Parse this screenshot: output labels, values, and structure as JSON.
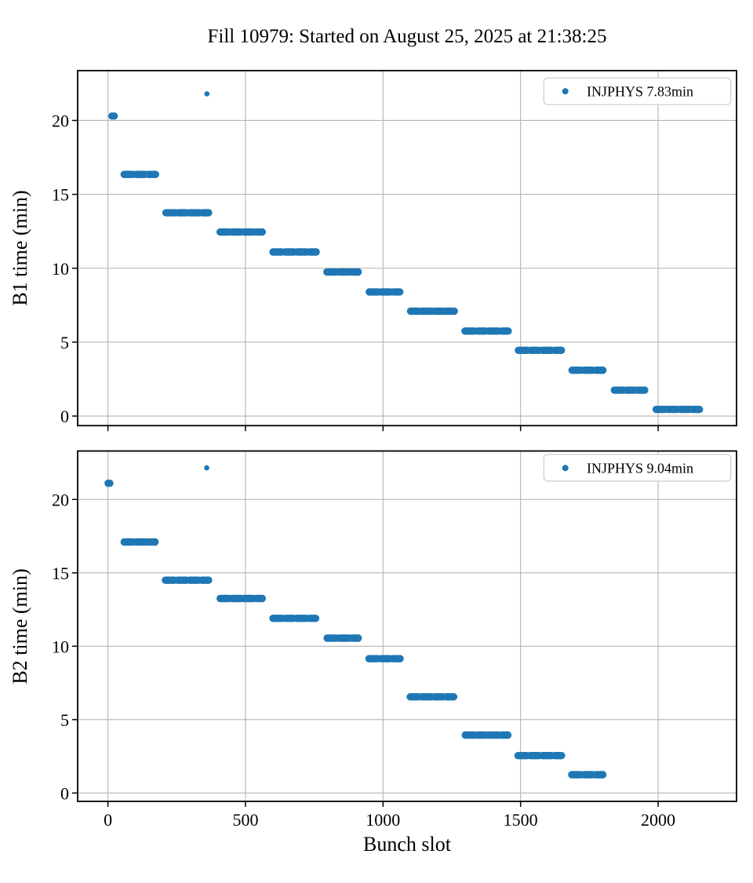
{
  "figure": {
    "title": "Fill 10979: Started on August 25, 2025 at 21:38:25",
    "xlabel": "Bunch slot"
  },
  "colors": {
    "marker": "#1f77b4",
    "grid": "#b4b4b4",
    "spine": "#000000",
    "legend_border": "#cccccc",
    "background": "#ffffff"
  },
  "chart_data": [
    {
      "type": "scatter",
      "beam": "B1",
      "ylabel": "B1 time (min)",
      "legend": {
        "label": "INJPHYS 7.83min",
        "position": "upper right"
      },
      "xlim": [
        -110,
        2285
      ],
      "ylim": [
        -0.65,
        23.37
      ],
      "xticks": [
        0,
        500,
        1000,
        1500,
        2000
      ],
      "yticks": [
        0,
        5,
        10,
        15,
        20
      ],
      "grid": true,
      "x_tick_labels_visible": false,
      "single_points": [
        {
          "slot": 15,
          "time": 20.3
        },
        {
          "slot": 23,
          "time": 20.3
        },
        {
          "slot": 360,
          "time": 21.8,
          "small": true
        }
      ],
      "trains": [
        {
          "slot_start": 59,
          "slot_end": 173,
          "time": 16.35
        },
        {
          "slot_start": 211,
          "slot_end": 366,
          "time": 13.75
        },
        {
          "slot_start": 408,
          "slot_end": 561,
          "time": 12.45
        },
        {
          "slot_start": 600,
          "slot_end": 757,
          "time": 11.1
        },
        {
          "slot_start": 796,
          "slot_end": 910,
          "time": 9.75
        },
        {
          "slot_start": 950,
          "slot_end": 1061,
          "time": 8.4
        },
        {
          "slot_start": 1100,
          "slot_end": 1259,
          "time": 7.1
        },
        {
          "slot_start": 1298,
          "slot_end": 1455,
          "time": 5.75
        },
        {
          "slot_start": 1492,
          "slot_end": 1648,
          "time": 4.45
        },
        {
          "slot_start": 1687,
          "slot_end": 1799,
          "time": 3.1
        },
        {
          "slot_start": 1841,
          "slot_end": 1951,
          "time": 1.75
        },
        {
          "slot_start": 1993,
          "slot_end": 2150,
          "time": 0.45
        }
      ]
    },
    {
      "type": "scatter",
      "beam": "B2",
      "ylabel": "B2 time (min)",
      "legend": {
        "label": "INJPHYS 9.04min",
        "position": "upper right"
      },
      "xlim": [
        -110,
        2285
      ],
      "ylim": [
        -0.57,
        23.3
      ],
      "xticks": [
        0,
        500,
        1000,
        1500,
        2000
      ],
      "yticks": [
        0,
        5,
        10,
        15,
        20
      ],
      "grid": true,
      "x_tick_labels_visible": true,
      "single_points": [
        {
          "slot": 1,
          "time": 21.1
        },
        {
          "slot": 7,
          "time": 21.1
        },
        {
          "slot": 359,
          "time": 22.15,
          "small": true
        }
      ],
      "trains": [
        {
          "slot_start": 59,
          "slot_end": 171,
          "time": 17.1
        },
        {
          "slot_start": 209,
          "slot_end": 366,
          "time": 14.5
        },
        {
          "slot_start": 408,
          "slot_end": 561,
          "time": 13.25
        },
        {
          "slot_start": 600,
          "slot_end": 755,
          "time": 11.9
        },
        {
          "slot_start": 797,
          "slot_end": 910,
          "time": 10.55
        },
        {
          "slot_start": 949,
          "slot_end": 1062,
          "time": 9.15
        },
        {
          "slot_start": 1099,
          "slot_end": 1257,
          "time": 6.55
        },
        {
          "slot_start": 1299,
          "slot_end": 1454,
          "time": 3.95
        },
        {
          "slot_start": 1491,
          "slot_end": 1649,
          "time": 2.55
        },
        {
          "slot_start": 1686,
          "slot_end": 1799,
          "time": 1.25
        }
      ]
    }
  ]
}
